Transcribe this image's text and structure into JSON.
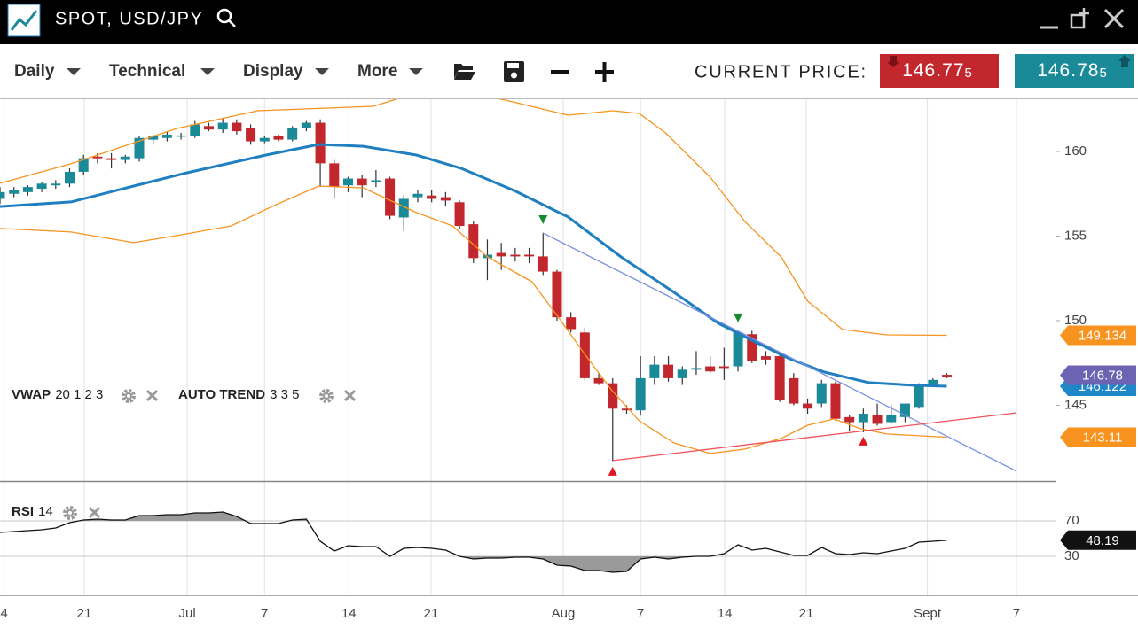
{
  "header": {
    "title": "SPOT, USD/JPY"
  },
  "toolbar": {
    "menus": [
      "Daily",
      "Technical",
      "Display",
      "More"
    ],
    "price_label": "CURRENT PRICE:",
    "bid": "146.77",
    "bid_pip": "5",
    "ask": "146.78",
    "ask_pip": "5"
  },
  "chart_data": [
    {
      "type": "candlestick",
      "open": [
        157.2,
        157.5,
        157.6,
        157.8,
        158.0,
        158.1,
        158.8,
        159.7,
        159.6,
        159.5,
        159.6,
        160.7,
        160.8,
        160.9,
        160.9,
        161.5,
        161.3,
        161.7,
        161.4,
        160.6,
        160.9,
        160.7,
        161.4,
        161.7,
        159.3,
        158.0,
        158.4,
        158.2,
        158.4,
        156.1,
        157.3,
        157.4,
        157.3,
        157.0,
        155.7,
        153.7,
        154.0,
        153.9,
        153.9,
        153.8,
        152.9,
        150.2,
        149.3,
        146.6,
        146.3,
        144.8,
        144.7,
        146.6,
        147.4,
        146.6,
        147.1,
        147.3,
        147.3,
        147.3,
        149.2,
        147.9,
        147.9,
        146.6,
        145.1,
        145.1,
        146.3,
        144.3,
        144.0,
        144.4,
        144.0,
        144.3,
        144.9,
        146.2,
        146.8
      ],
      "high": [
        157.9,
        157.9,
        158.0,
        158.2,
        158.3,
        159.0,
        159.8,
        159.9,
        159.9,
        159.8,
        160.9,
        161.0,
        161.2,
        161.1,
        161.8,
        161.7,
        162.0,
        161.9,
        161.6,
        160.9,
        161.0,
        161.5,
        161.8,
        161.9,
        159.5,
        158.5,
        158.6,
        158.9,
        158.5,
        157.4,
        157.7,
        157.7,
        157.6,
        157.1,
        155.9,
        154.8,
        154.6,
        154.3,
        154.3,
        155.2,
        153.0,
        150.5,
        149.6,
        146.9,
        146.6,
        145.0,
        147.9,
        147.9,
        147.9,
        147.3,
        148.2,
        147.9,
        148.4,
        149.4,
        149.4,
        148.2,
        148.0,
        146.9,
        145.4,
        146.5,
        146.4,
        144.4,
        144.8,
        145.1,
        145.0,
        145.1,
        146.3,
        146.6,
        146.9
      ],
      "low": [
        156.9,
        157.3,
        157.4,
        157.6,
        157.8,
        157.9,
        158.6,
        159.3,
        159.0,
        159.3,
        159.4,
        160.4,
        160.6,
        160.7,
        160.8,
        161.2,
        161.1,
        161.0,
        160.4,
        160.5,
        160.6,
        160.6,
        161.2,
        157.9,
        157.2,
        157.6,
        157.3,
        157.9,
        156.0,
        155.3,
        157.0,
        157.0,
        156.8,
        155.4,
        153.4,
        152.4,
        153.0,
        153.5,
        153.4,
        152.7,
        150.0,
        149.3,
        146.5,
        146.2,
        141.7,
        144.5,
        144.4,
        146.2,
        146.4,
        146.2,
        146.8,
        146.9,
        146.5,
        147.0,
        147.5,
        147.4,
        145.2,
        145.0,
        144.5,
        144.9,
        144.1,
        143.5,
        143.4,
        143.8,
        143.9,
        144.0,
        144.8,
        146.1,
        146.6
      ],
      "close": [
        157.6,
        157.7,
        157.9,
        158.1,
        158.1,
        158.8,
        159.6,
        159.6,
        159.5,
        159.7,
        160.8,
        160.9,
        161.0,
        160.95,
        161.6,
        161.3,
        161.7,
        161.2,
        160.6,
        160.8,
        160.7,
        161.4,
        161.7,
        159.3,
        157.9,
        158.4,
        158.0,
        158.3,
        156.2,
        157.2,
        157.5,
        157.2,
        157.1,
        155.6,
        153.7,
        153.9,
        153.8,
        153.8,
        153.8,
        152.9,
        150.2,
        149.5,
        146.6,
        146.3,
        144.8,
        144.7,
        146.6,
        147.4,
        146.6,
        147.1,
        147.2,
        147.0,
        147.2,
        149.3,
        147.6,
        147.7,
        145.3,
        145.1,
        144.8,
        146.3,
        144.2,
        144.0,
        144.5,
        143.9,
        144.4,
        145.1,
        146.2,
        146.5,
        146.7
      ],
      "up_color": "#1a8a99",
      "down_color": "#c1272d",
      "wick_color": "#333333",
      "xlim": [
        0,
        75.8
      ],
      "ylim": [
        140.52,
        163.09
      ],
      "yticks": [
        145,
        150,
        155,
        160
      ],
      "overlays": [
        {
          "color": "#1f7fc1",
          "style": "bold",
          "x": [
            0,
            5.1,
            9.6,
            13.4,
            19.1,
            22.9,
            26.1,
            29.9,
            33.1,
            36.9,
            40.8,
            44.6,
            48.4,
            51.6,
            54.1,
            56.7,
            59.2,
            62.4,
            65.6,
            68
          ],
          "values": [
            156.75,
            157.02,
            157.96,
            158.74,
            159.79,
            160.42,
            160.31,
            159.79,
            159.01,
            157.7,
            156.13,
            153.77,
            151.68,
            149.84,
            148.8,
            147.75,
            146.96,
            146.34,
            146.18,
            146.122
          ]
        },
        {
          "color": "#f7931e",
          "style": "thin",
          "x": [
            0,
            5.1,
            12.7,
            18.5,
            26.8,
            29.9,
            33.1,
            36.3,
            40.8,
            44,
            45.9,
            47.8,
            51,
            53.5,
            56.1,
            58,
            60.5,
            63.7,
            68
          ],
          "values": [
            158.12,
            159.27,
            161.36,
            162.41,
            162.67,
            163.46,
            163.56,
            163.04,
            162.15,
            162.41,
            162.25,
            161.1,
            158.48,
            155.86,
            153.77,
            151.15,
            149.48,
            149.16,
            149.134
          ]
        },
        {
          "color": "#f7931e",
          "style": "thin",
          "x": [
            0,
            5.1,
            9.6,
            12.7,
            16.6,
            19.7,
            22.9,
            26.1,
            29.9,
            32.5,
            35,
            38.2,
            40.1,
            42,
            43.9,
            45.9,
            48.4,
            51,
            53.5,
            56.1,
            58,
            59.9,
            61.8,
            63.7,
            68
          ],
          "values": [
            155.45,
            155.24,
            154.61,
            155.03,
            155.6,
            156.81,
            157.96,
            157.85,
            156.39,
            155.6,
            153.77,
            152.3,
            150.21,
            148.01,
            145.92,
            144.08,
            142.77,
            142.15,
            142.41,
            143.04,
            143.82,
            144.19,
            143.61,
            143.3,
            143.11
          ]
        },
        {
          "color": "#7b8fe0",
          "style": "thin",
          "x": [
            39,
            73
          ],
          "values": [
            155.18,
            141.1
          ]
        },
        {
          "color": "#f0505a",
          "style": "thin",
          "x": [
            44,
            73
          ],
          "values": [
            141.73,
            144.55
          ]
        }
      ],
      "markers": {
        "x": [
          39,
          53,
          44,
          62
        ],
        "values": [
          155.97,
          150.16,
          141.1,
          142.88
        ],
        "directions": [
          "down",
          "down",
          "up",
          "up"
        ],
        "colors": [
          "#1a8a2e",
          "#1a8a2e",
          "#e0161e",
          "#e0161e"
        ]
      },
      "price_tags": {
        "values": [
          149.134,
          146.122,
          146.78,
          143.11
        ],
        "colors": [
          "#f7931e",
          "#1f86c8",
          "#6d63b3",
          "#f7931e"
        ]
      },
      "indicators": [
        {
          "name": "VWAP",
          "params": "20 1 2 3"
        },
        {
          "name": "AUTO TREND",
          "params": "3 3 5"
        }
      ]
    },
    {
      "type": "line",
      "name": "RSI",
      "params": "14",
      "color": "#111111",
      "shade_color": "#9a9a9a",
      "values": [
        57,
        58,
        59,
        60,
        62,
        68,
        71,
        72,
        71,
        71,
        76,
        76,
        77,
        77,
        79,
        79,
        80,
        75,
        67,
        67,
        67,
        71,
        72,
        47,
        36,
        42,
        41,
        41,
        30,
        39,
        40,
        39,
        37,
        30,
        27,
        28,
        28,
        29,
        29,
        27,
        20,
        19,
        14,
        14,
        12,
        13,
        27,
        29,
        27,
        29,
        30,
        30,
        33,
        43,
        37,
        39,
        35,
        31,
        31,
        40,
        33,
        32,
        34,
        33,
        36,
        39,
        46,
        47,
        48.19
      ],
      "xlim": [
        0,
        75.8
      ],
      "ylim": [
        -14,
        115
      ],
      "yticks": [
        30,
        70
      ],
      "grid": true,
      "xticks": [
        {
          "value": 0.3,
          "label": "4"
        },
        {
          "value": 6.05,
          "label": "21"
        },
        {
          "value": 13.45,
          "label": "Jul"
        },
        {
          "value": 19,
          "label": "7"
        },
        {
          "value": 25.05,
          "label": "14"
        },
        {
          "value": 30.95,
          "label": "21"
        },
        {
          "value": 40.45,
          "label": "Aug"
        },
        {
          "value": 46,
          "label": "7"
        },
        {
          "value": 52.05,
          "label": "14"
        },
        {
          "value": 57.9,
          "label": "21"
        },
        {
          "value": 66.6,
          "label": "Sept"
        },
        {
          "value": 73,
          "label": "7"
        }
      ]
    }
  ]
}
